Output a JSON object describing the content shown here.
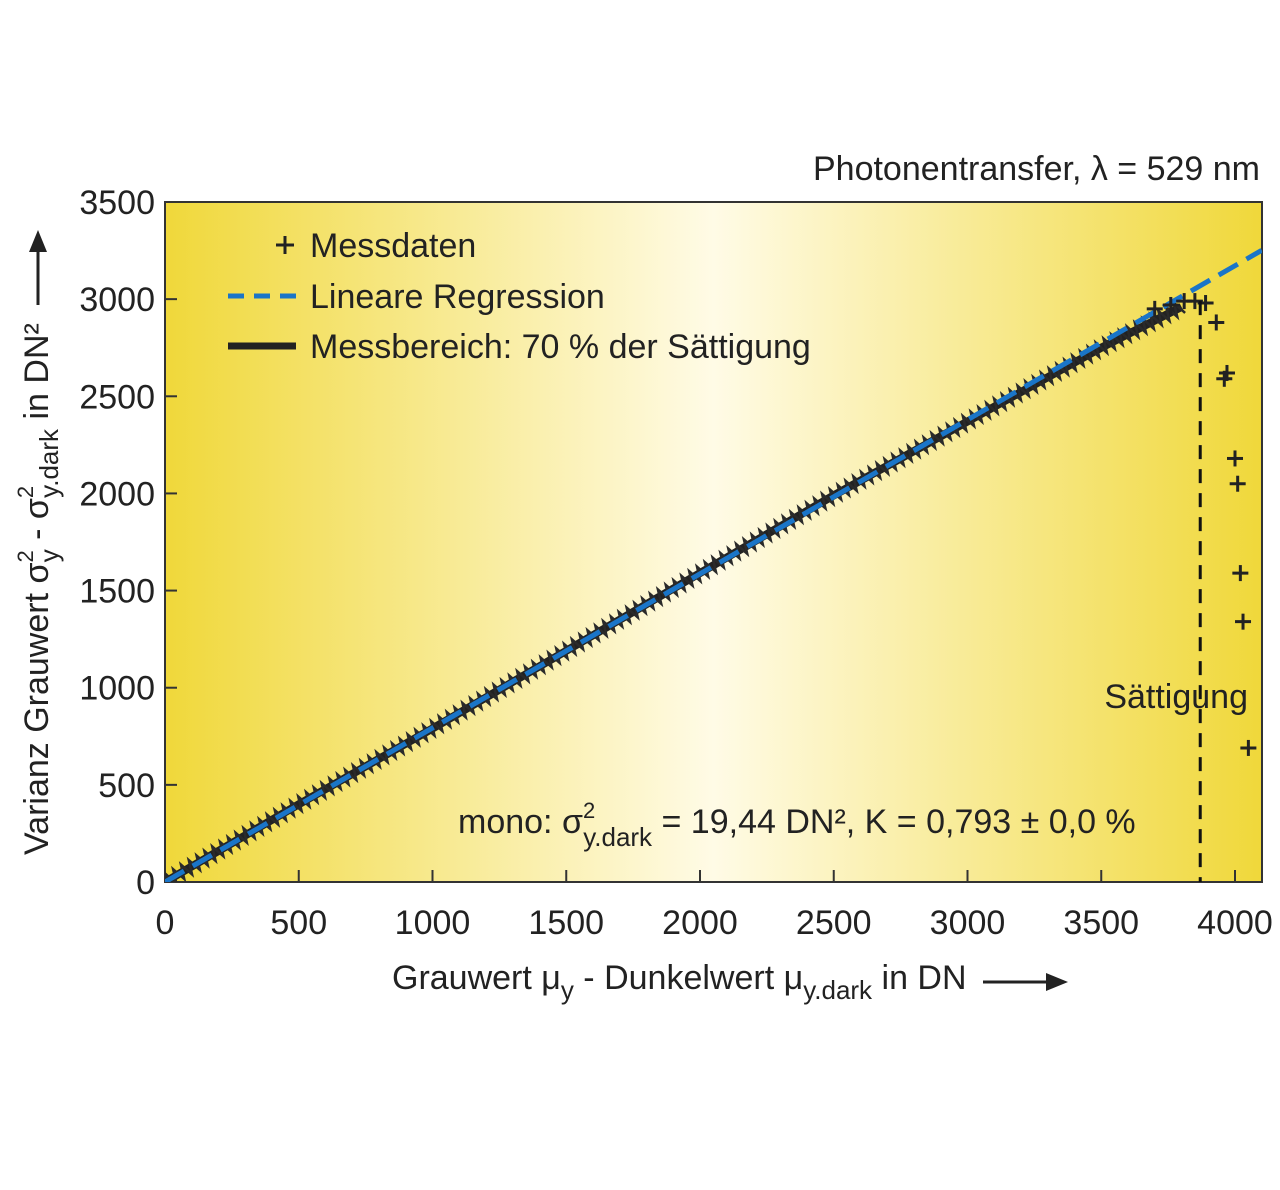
{
  "chart_data": {
    "type": "scatter",
    "title": "Photonentransfer, λ = 529 nm",
    "xlabel": "Grauwert μy - Dunkelwert μy.dark in DN",
    "ylabel": "Varianz Grauwert σ²y - σ²y.dark in DN²",
    "xlim": [
      0,
      4100
    ],
    "ylim": [
      0,
      3500
    ],
    "x_ticks": [
      0,
      500,
      1000,
      1500,
      2000,
      2500,
      3000,
      3500,
      4000
    ],
    "y_ticks": [
      0,
      500,
      1000,
      1500,
      2000,
      2500,
      3000,
      3500
    ],
    "grid": false,
    "legend_position": "top-left",
    "legend": [
      {
        "label": "Messdaten",
        "symbol": "plus"
      },
      {
        "label": "Lineare Regression",
        "symbol": "dashed-line"
      },
      {
        "label": "Messbereich: 70 % der Sättigung",
        "symbol": "thick-line"
      }
    ],
    "regression": {
      "name": "Lineare Regression",
      "slope": 0.793,
      "intercept": 0,
      "x_range": [
        0,
        4100
      ],
      "color": "#1a75c8"
    },
    "range_line": {
      "name": "Messbereich: 70 % der Sättigung",
      "x": [
        0,
        500,
        1000,
        1500,
        2000,
        2500,
        3000,
        3500,
        3800
      ],
      "y": [
        0,
        400,
        790,
        1190,
        1590,
        1990,
        2370,
        2750,
        2960
      ],
      "color": "#222222"
    },
    "points": [
      {
        "x": 3700,
        "y": 2950
      },
      {
        "x": 3760,
        "y": 2970
      },
      {
        "x": 3810,
        "y": 2990
      },
      {
        "x": 3850,
        "y": 2990
      },
      {
        "x": 3890,
        "y": 2980
      },
      {
        "x": 3930,
        "y": 2880
      },
      {
        "x": 3960,
        "y": 2590
      },
      {
        "x": 3970,
        "y": 2620
      },
      {
        "x": 4000,
        "y": 2180
      },
      {
        "x": 4010,
        "y": 2050
      },
      {
        "x": 4020,
        "y": 1590
      },
      {
        "x": 4030,
        "y": 1340
      },
      {
        "x": 4050,
        "y": 690
      }
    ],
    "saturation": {
      "x": 3870,
      "label": "Sättigung"
    },
    "annotation": {
      "prefix": "mono: σ",
      "sup": "2",
      "sub": "y.dark",
      "suffix": " = 19,44 DN², K = 0,793 ± 0,0 %"
    }
  },
  "axis_text": {
    "x_parts": [
      "Grauwert μ",
      "y",
      " - Dunkelwert μ",
      "y.dark",
      " in DN"
    ],
    "y_parts": [
      "Varianz Grauwert σ",
      "2",
      "y",
      " - σ",
      "2",
      "y.dark",
      " in DN²"
    ]
  },
  "colors": {
    "regression": "#1a75c8",
    "data": "#222222",
    "bg_edge": "#f0d83a",
    "bg_center": "#fffbe6"
  }
}
